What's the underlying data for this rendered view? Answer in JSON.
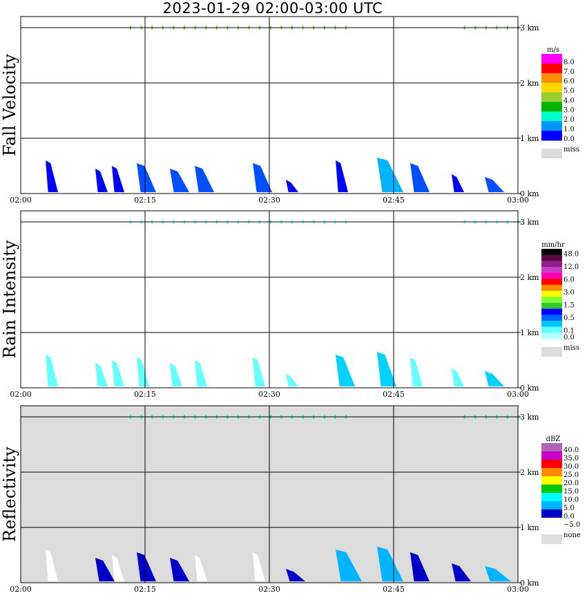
{
  "title": "2023-01-29   02:00-03:00 UTC",
  "chart_data": [
    {
      "type": "heatmap",
      "ylabel": "Fall Velocity",
      "x_ticks": [
        "02:00",
        "02:15",
        "02:30",
        "02:45",
        "03:00"
      ],
      "y_ticks": [
        "0 km",
        "1 km",
        "2 km",
        "3 km"
      ],
      "ylim": [
        0,
        3.2
      ],
      "background": "#ffffff",
      "legend": {
        "unit": "m/s",
        "labels": [
          "8.0",
          "7.0",
          "6.0",
          "5.0",
          "4.0",
          "3.0",
          "2.0",
          "1.0",
          "0.0"
        ],
        "colors": [
          "#ff00ff",
          "#ff0000",
          "#ff8c00",
          "#ffd700",
          "#9acd32",
          "#00b400",
          "#00ffc8",
          "#0096ff",
          "#0000ff"
        ],
        "miss_label": "miss",
        "miss_color": "#dcdcdc"
      },
      "echoes": [
        {
          "t": 3,
          "top": 0.6,
          "c": 0
        },
        {
          "t": 9,
          "top": 0.45,
          "c": 0
        },
        {
          "t": 11,
          "top": 0.5,
          "c": 0
        },
        {
          "t": 14,
          "top": 0.55,
          "c": 1
        },
        {
          "t": 18,
          "top": 0.45,
          "c": 1
        },
        {
          "t": 21,
          "top": 0.5,
          "c": 1
        },
        {
          "t": 28,
          "top": 0.55,
          "c": 1
        },
        {
          "t": 32,
          "top": 0.25,
          "c": 0
        },
        {
          "t": 38,
          "top": 0.6,
          "c": 0
        },
        {
          "t": 43,
          "top": 0.65,
          "c": 2
        },
        {
          "t": 47,
          "top": 0.55,
          "c": 1
        },
        {
          "t": 52,
          "top": 0.35,
          "c": 0
        },
        {
          "t": 56,
          "top": 0.3,
          "c": 1
        }
      ],
      "top_layer_color": "#7fd24a"
    },
    {
      "type": "heatmap",
      "ylabel": "Rain Intensity",
      "x_ticks": [
        "02:00",
        "02:15",
        "02:30",
        "02:45",
        "03:00"
      ],
      "y_ticks": [
        "0 km",
        "1 km",
        "2 km",
        "3 km"
      ],
      "ylim": [
        0,
        3.2
      ],
      "background": "#ffffff",
      "legend": {
        "unit": "mm/hr",
        "labels": [
          "48.0",
          "",
          "12.0",
          "",
          "6.0",
          "",
          "3.0",
          "",
          "1.5",
          "",
          "0.5",
          "",
          "0.1",
          "0.0"
        ],
        "colors": [
          "#000000",
          "#5a0a46",
          "#8c1e8c",
          "#c83cc8",
          "#ff00b4",
          "#ff0000",
          "#ff8c00",
          "#ffff00",
          "#82ff32",
          "#32c832",
          "#0000ff",
          "#0064ff",
          "#00c8ff",
          "#64ffff",
          "#b4ffff"
        ],
        "miss_label": "miss",
        "miss_color": "#dcdcdc"
      },
      "echoes": [
        {
          "t": 3,
          "top": 0.6,
          "c": 0
        },
        {
          "t": 9,
          "top": 0.45,
          "c": 0
        },
        {
          "t": 11,
          "top": 0.5,
          "c": 0
        },
        {
          "t": 14,
          "top": 0.55,
          "c": 0
        },
        {
          "t": 18,
          "top": 0.45,
          "c": 0
        },
        {
          "t": 21,
          "top": 0.5,
          "c": 0
        },
        {
          "t": 28,
          "top": 0.55,
          "c": 0
        },
        {
          "t": 32,
          "top": 0.25,
          "c": 0
        },
        {
          "t": 38,
          "top": 0.6,
          "c": 1
        },
        {
          "t": 43,
          "top": 0.65,
          "c": 1
        },
        {
          "t": 47,
          "top": 0.55,
          "c": 0
        },
        {
          "t": 52,
          "top": 0.35,
          "c": 0
        },
        {
          "t": 56,
          "top": 0.3,
          "c": 1
        }
      ],
      "top_layer_color": "#64ffff"
    },
    {
      "type": "heatmap",
      "ylabel": "Reflectivity",
      "x_ticks": [
        "02:00",
        "02:15",
        "02:30",
        "02:45",
        "03:00"
      ],
      "y_ticks": [
        "0 km",
        "1 km",
        "2 km",
        "3 km"
      ],
      "ylim": [
        0,
        3.2
      ],
      "background": "#dcdcdc",
      "legend": {
        "unit": "dBZ",
        "labels": [
          "40.0",
          "35.0",
          "30.0",
          "25.0",
          "20.0",
          "15.0",
          "10.0",
          "5.0",
          "0.0",
          "−5.0"
        ],
        "colors": [
          "#b464b4",
          "#c800c8",
          "#ff0000",
          "#ff8c00",
          "#ffff00",
          "#00c800",
          "#00ffff",
          "#00b4ff",
          "#0000c8",
          "#ffffff"
        ],
        "miss_label": "none",
        "miss_color": "#dcdcdc"
      },
      "echoes": [
        {
          "t": 3,
          "top": 0.6,
          "c": 0
        },
        {
          "t": 9,
          "top": 0.45,
          "c": 1
        },
        {
          "t": 11,
          "top": 0.5,
          "c": 0
        },
        {
          "t": 14,
          "top": 0.55,
          "c": 1
        },
        {
          "t": 18,
          "top": 0.45,
          "c": 1
        },
        {
          "t": 21,
          "top": 0.5,
          "c": 0
        },
        {
          "t": 28,
          "top": 0.55,
          "c": 0
        },
        {
          "t": 32,
          "top": 0.25,
          "c": 1
        },
        {
          "t": 38,
          "top": 0.6,
          "c": 2
        },
        {
          "t": 43,
          "top": 0.65,
          "c": 2
        },
        {
          "t": 47,
          "top": 0.55,
          "c": 1
        },
        {
          "t": 52,
          "top": 0.35,
          "c": 1
        },
        {
          "t": 56,
          "top": 0.3,
          "c": 2
        }
      ],
      "top_layer_color": "#00ffb4"
    }
  ]
}
